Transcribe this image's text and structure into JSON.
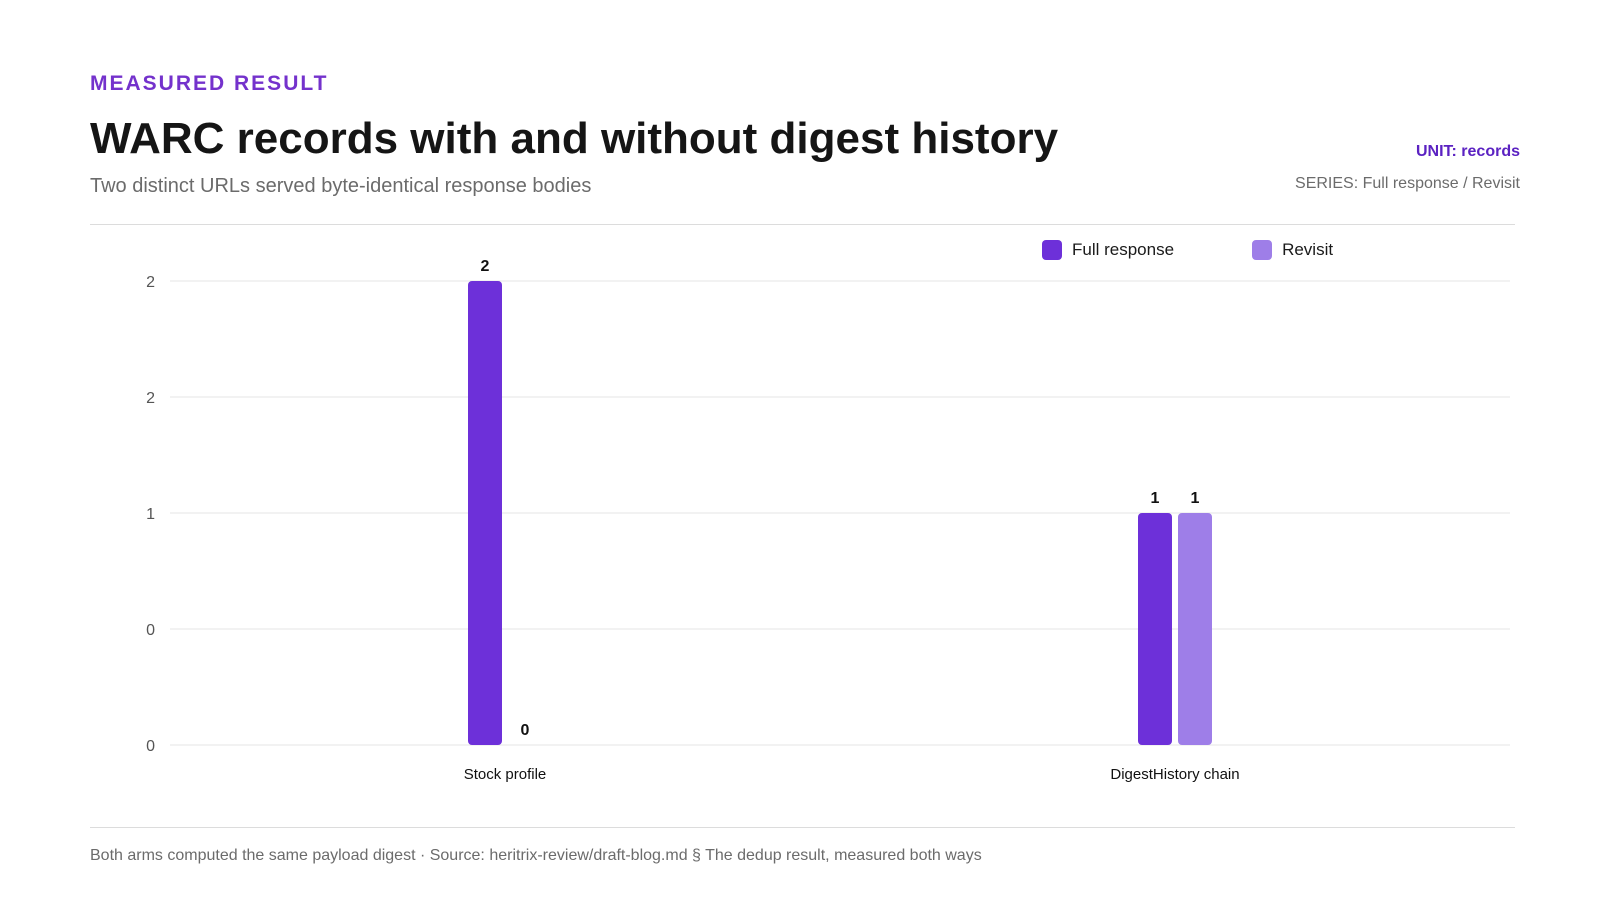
{
  "header": {
    "eyebrow": "MEASURED RESULT",
    "title": "WARC records with and without digest history",
    "subtitle": "Two distinct URLs served byte-identical response bodies",
    "unit_label": "UNIT: records",
    "series_label": "SERIES: Full response / Revisit"
  },
  "footer": {
    "note": "Both arms computed the same payload digest · Source: heritrix-review/draft-blog.md § The dedup result, measured both ways"
  },
  "colors": {
    "accent": "#7432cc",
    "full_response": "#6d30d9",
    "revisit": "#9e7ee8",
    "grid": "#e6e6e6",
    "axis_text": "#555555"
  },
  "chart_data": {
    "type": "bar",
    "categories": [
      "Stock profile",
      "DigestHistory chain"
    ],
    "series": [
      {
        "name": "Full response",
        "values": [
          2,
          1
        ]
      },
      {
        "name": "Revisit",
        "values": [
          0,
          1
        ]
      }
    ],
    "ylim": [
      0,
      2
    ],
    "yticks": [
      0,
      0.5,
      1,
      1.5,
      2
    ],
    "ytick_labels": [
      "0",
      "0",
      "1",
      "2",
      "2"
    ],
    "legend": "top-right",
    "grid": true
  }
}
